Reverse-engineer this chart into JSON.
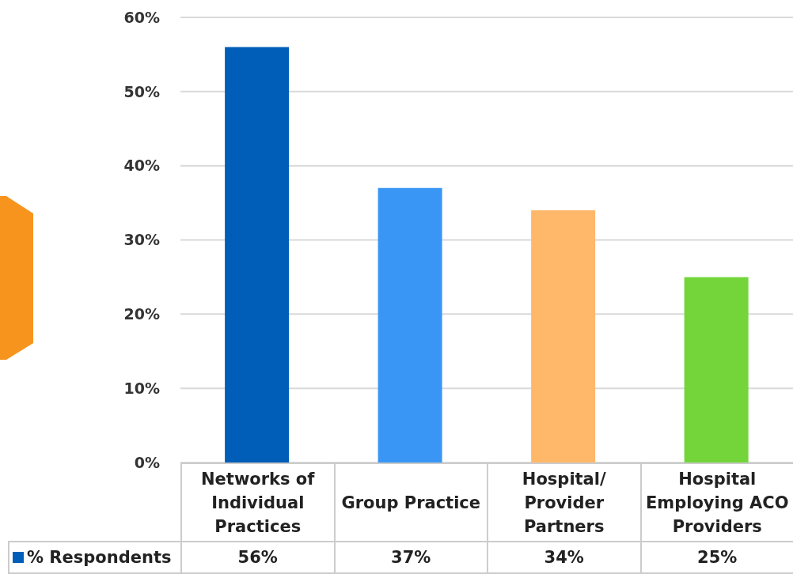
{
  "chart_data": {
    "type": "bar",
    "categories": [
      "Networks of\nIndividual\nPractices",
      "Group Practice",
      "Hospital/\nProvider\nPartners",
      "Hospital\nEmploying ACO\nProviders"
    ],
    "series": [
      {
        "name": "% Respondents",
        "color": "#005eb8",
        "colors": [
          "#005eb8",
          "#3a96f5",
          "#ffb86a",
          "#74d53a"
        ],
        "values": [
          56,
          37,
          34,
          25
        ]
      }
    ],
    "ylim": [
      0,
      60
    ],
    "yticks": [
      {
        "value": 0,
        "label": "0%"
      },
      {
        "value": 10,
        "label": "10%"
      },
      {
        "value": 20,
        "label": "20%"
      },
      {
        "value": 30,
        "label": "30%"
      },
      {
        "value": 40,
        "label": "40%"
      },
      {
        "value": 50,
        "label": "50%"
      },
      {
        "value": 60,
        "label": "60%"
      }
    ],
    "grid": "y",
    "value_labels": [
      "56%",
      "37%",
      "34%",
      "25%"
    ]
  }
}
